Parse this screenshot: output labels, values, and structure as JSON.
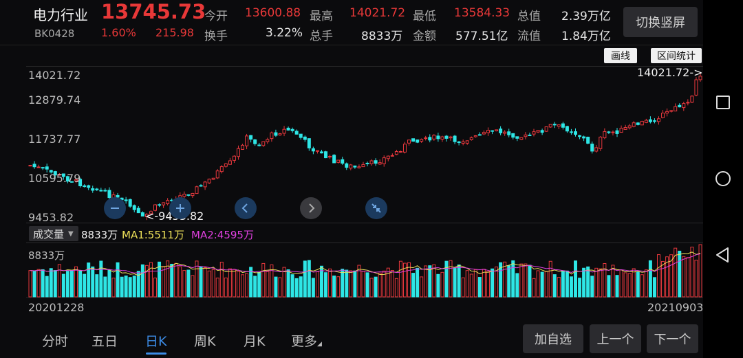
{
  "header": {
    "name": "电力行业",
    "code": "BK0428",
    "price": "13745.73",
    "change_pct": "1.60%",
    "change_abs": "215.98",
    "open_label": "今开",
    "open_value": "13600.88",
    "high_label": "最高",
    "high_value": "14021.72",
    "low_label": "最低",
    "low_value": "13584.33",
    "mktcap_label": "总值",
    "mktcap_value": "2.39万亿",
    "turnover_label": "换手",
    "turnover_value": "3.22%",
    "volume_label": "总手",
    "volume_value": "8833万",
    "amount_label": "金额",
    "amount_value": "577.51亿",
    "float_label": "流值",
    "float_value": "1.84万亿",
    "switch_label": "切换竖屏"
  },
  "toolbar": {
    "draw_label": "画线",
    "range_label": "区间统计"
  },
  "price_axis": {
    "labels": [
      "14021.72",
      "12879.74",
      "11737.77",
      "10595.79",
      "9453.82"
    ]
  },
  "annotations": {
    "max_marker": "14021.72->",
    "min_marker": "<-9453.82"
  },
  "volume": {
    "select_label": "成交量",
    "current": "8833万",
    "ma1": "MA1:5511万",
    "ma2": "MA2:4595万",
    "axis_label": "8833万",
    "ma1_color": "#f0e35a",
    "ma2_color": "#e040e0"
  },
  "dates": {
    "start": "20201228",
    "end": "20210903"
  },
  "tabs": [
    "分时",
    "五日",
    "日K",
    "周K",
    "月K",
    "更多"
  ],
  "active_tab": "日K",
  "actions": {
    "add_watch": "加自选",
    "prev": "上一个",
    "next": "下一个"
  },
  "colors": {
    "up": "#e8383d",
    "down": "#2ee6e6",
    "accent": "#3c8ce6"
  }
}
